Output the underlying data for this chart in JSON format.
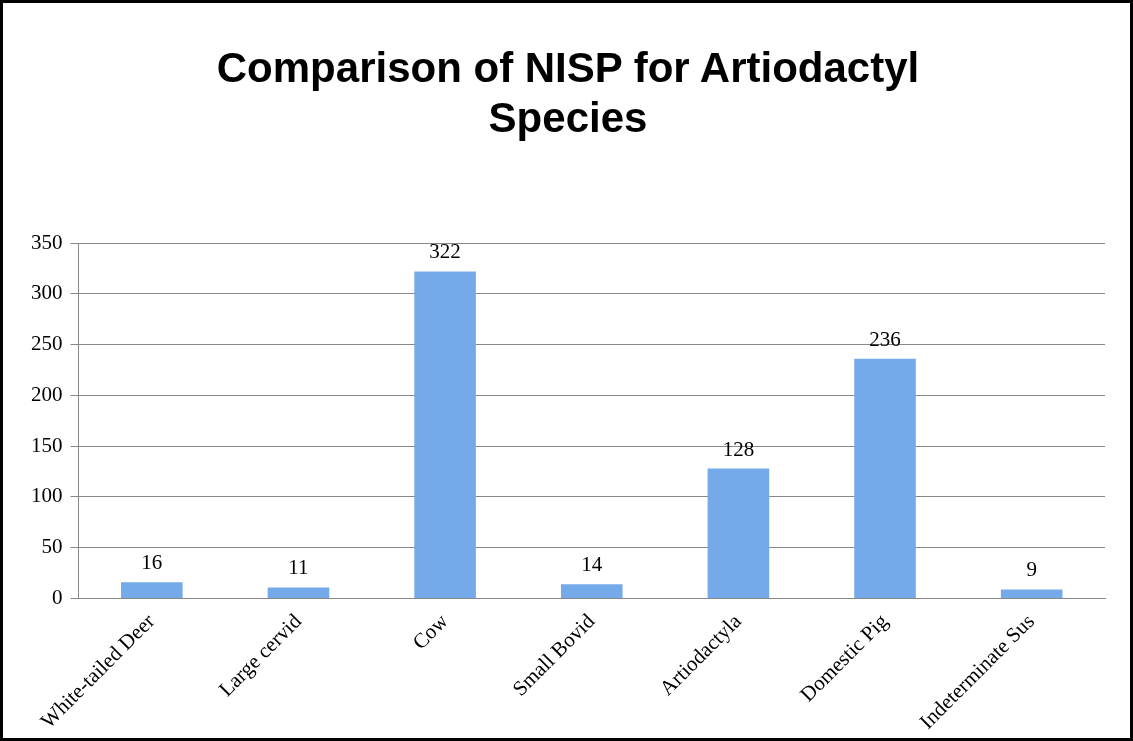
{
  "chart_data": {
    "type": "bar",
    "title": "Comparison of NISP for Artiodactyl Species",
    "categories": [
      "White-tailed Deer",
      "Large cervid",
      "Cow",
      "Small Bovid",
      "Artiodactyla",
      "Domestic Pig",
      "Indeterminate Sus"
    ],
    "values": [
      16,
      11,
      322,
      14,
      128,
      236,
      9
    ],
    "color": "#74aaea",
    "ylim": [
      0,
      350
    ],
    "yticks": [
      0,
      50,
      100,
      150,
      200,
      250,
      300,
      350
    ],
    "grid": "y",
    "data_labels": true,
    "legend": false
  }
}
